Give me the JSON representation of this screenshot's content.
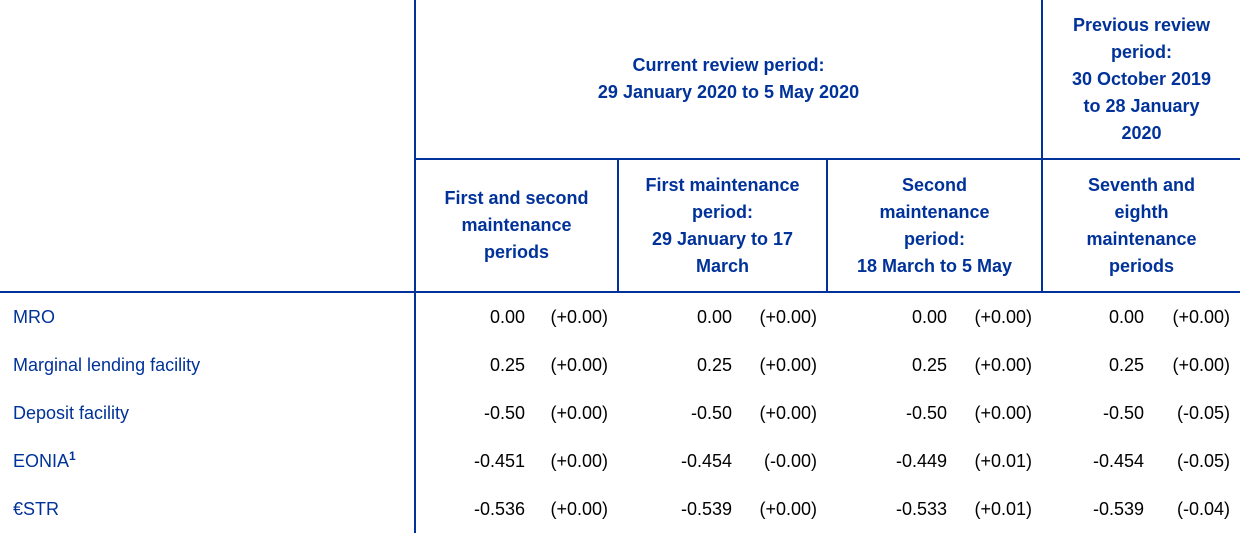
{
  "table": {
    "current_period": [
      "Current review period:",
      "29 January 2020 to 5 May 2020"
    ],
    "previous_period": [
      "Previous review",
      "period:",
      "30 October 2019",
      "to 28 January",
      "2020"
    ],
    "subheaders": [
      [
        "First and second",
        "maintenance",
        "periods"
      ],
      [
        "First maintenance",
        "period:",
        "29 January to 17",
        "March"
      ],
      [
        "Second",
        "maintenance",
        "period:",
        "18 March to 5 May"
      ],
      [
        "Seventh and",
        "eighth",
        "maintenance",
        "periods"
      ]
    ],
    "rows": [
      {
        "label": "MRO",
        "footnote": "",
        "cells": [
          [
            "0.00",
            "(+0.00)"
          ],
          [
            "0.00",
            "(+0.00)"
          ],
          [
            "0.00",
            "(+0.00)"
          ],
          [
            "0.00",
            "(+0.00)"
          ]
        ]
      },
      {
        "label": "Marginal lending facility",
        "footnote": "",
        "cells": [
          [
            "0.25",
            "(+0.00)"
          ],
          [
            "0.25",
            "(+0.00)"
          ],
          [
            "0.25",
            "(+0.00)"
          ],
          [
            "0.25",
            "(+0.00)"
          ]
        ]
      },
      {
        "label": "Deposit facility",
        "footnote": "",
        "cells": [
          [
            "-0.50",
            "(+0.00)"
          ],
          [
            "-0.50",
            "(+0.00)"
          ],
          [
            "-0.50",
            "(+0.00)"
          ],
          [
            "-0.50",
            "(-0.05)"
          ]
        ]
      },
      {
        "label": "EONIA",
        "footnote": "1",
        "cells": [
          [
            "-0.451",
            "(+0.00)"
          ],
          [
            "-0.454",
            "(-0.00)"
          ],
          [
            "-0.449",
            "(+0.01)"
          ],
          [
            "-0.454",
            "(-0.05)"
          ]
        ]
      },
      {
        "label": "€STR",
        "footnote": "",
        "cells": [
          [
            "-0.536",
            "(+0.00)"
          ],
          [
            "-0.539",
            "(+0.00)"
          ],
          [
            "-0.533",
            "(+0.01)"
          ],
          [
            "-0.539",
            "(-0.04)"
          ]
        ]
      }
    ]
  },
  "colors": {
    "header_text": "#003299",
    "label_text": "#003299",
    "value_text": "#000000",
    "rule": "#003299"
  }
}
